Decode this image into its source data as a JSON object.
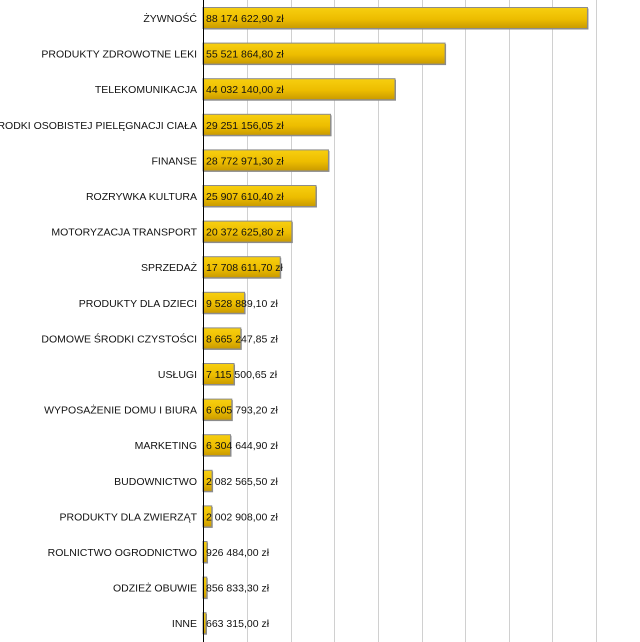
{
  "chart_data": {
    "type": "bar",
    "orientation": "horizontal",
    "title": "",
    "xlabel": "",
    "ylabel": "",
    "xlim": [
      0,
      100000000
    ],
    "grid": true,
    "grid_step": 10000000,
    "bar_color": "#E8B800",
    "categories": [
      "ŻYWNOŚĆ",
      "PRODUKTY ZDROWOTNE LEKI",
      "TELEKOMUNIKACJA",
      "ŚRODKI OSOBISTEJ PIELĘGNACJI CIAŁA",
      "FINANSE",
      "ROZRYWKA KULTURA",
      "MOTORYZACJA TRANSPORT",
      "SPRZEDAŻ",
      "PRODUKTY DLA DZIECI",
      "DOMOWE ŚRODKI CZYSTOŚCI",
      "USŁUGI",
      "WYPOSAŻENIE DOMU I BIURA",
      "MARKETING",
      "BUDOWNICTWO",
      "PRODUKTY DLA ZWIERZĄT",
      "ROLNICTWO OGRODNICTWO",
      "ODZIEŻ OBUWIE",
      "INNE"
    ],
    "values": [
      88174622.9,
      55521864.8,
      44032140.0,
      29251156.05,
      28772971.3,
      25907610.4,
      20372625.8,
      17708611.7,
      9528889.1,
      8665247.85,
      7115500.65,
      6605793.2,
      6304644.9,
      2082565.5,
      2002908.0,
      926484.0,
      856833.3,
      663315.0
    ],
    "labels": [
      "88 174 622,90 zł",
      "55 521 864,80 zł",
      "44 032 140,00 zł",
      "29 251 156,05 zł",
      "28 772 971,30 zł",
      "25 907 610,40 zł",
      "20 372 625,80 zł",
      "17 708 611,70 zł",
      "9 528 889,10 zł",
      "8 665 247,85 zł",
      "7 115 500,65 zł",
      "6 605 793,20 zł",
      "6 304 644,90 zł",
      "2 082 565,50 zł",
      "2 002 908,00 zł",
      "926 484,00 zł",
      "856 833,30 zł",
      "663 315,00 zł"
    ]
  }
}
